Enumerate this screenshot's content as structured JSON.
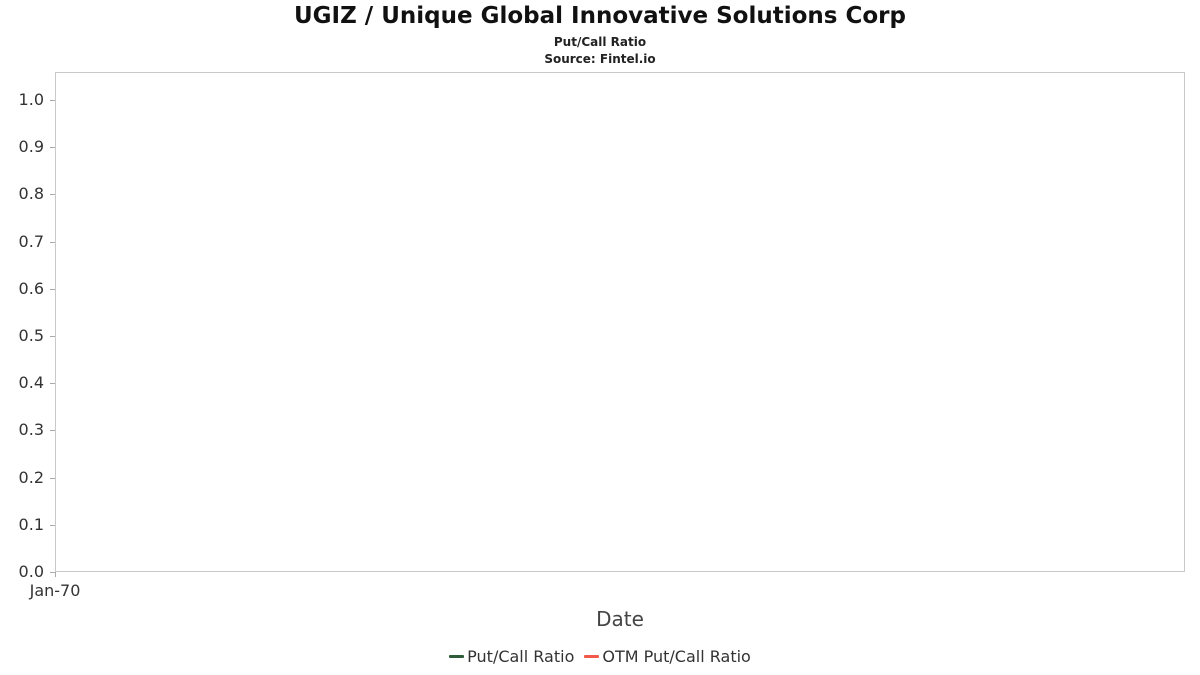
{
  "chart_data": {
    "type": "line",
    "title": "UGIZ / Unique Global Innovative Solutions Corp",
    "subtitle": "Put/Call Ratio",
    "source": "Source: Fintel.io",
    "xlabel": "Date",
    "x_ticks": [
      "Jan-70"
    ],
    "y_ticks": [
      0.0,
      0.1,
      0.2,
      0.3,
      0.4,
      0.5,
      0.6,
      0.7,
      0.8,
      0.9,
      1.0
    ],
    "ylim": [
      0,
      1.06
    ],
    "grid": false,
    "legend_position": "bottom",
    "series": [
      {
        "name": "Put/Call Ratio",
        "color": "#2f5d3a",
        "x": [],
        "values": []
      },
      {
        "name": "OTM Put/Call Ratio",
        "color": "#f2594b",
        "x": [],
        "values": []
      }
    ]
  }
}
